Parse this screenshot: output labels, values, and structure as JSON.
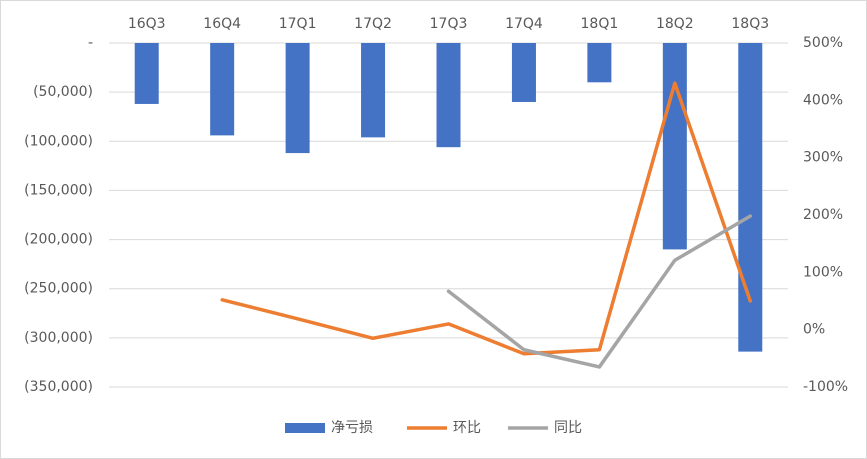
{
  "chart_data": {
    "type": "bar",
    "categories": [
      "16Q3",
      "16Q4",
      "17Q1",
      "17Q2",
      "17Q3",
      "17Q4",
      "18Q1",
      "18Q2",
      "18Q3"
    ],
    "series": [
      {
        "name": "净亏损",
        "type": "bar",
        "color": "#4472c4",
        "values": [
          -62000,
          -94000,
          -112000,
          -96000,
          -106000,
          -60000,
          -40000,
          -210000,
          -314000
        ]
      },
      {
        "name": "环比",
        "type": "line",
        "axis": "y2",
        "color": "#ed7d31",
        "values": [
          null,
          52,
          19,
          -15,
          10,
          -42,
          -35,
          430,
          50
        ]
      },
      {
        "name": "同比",
        "type": "line",
        "axis": "y2",
        "color": "#a5a5a5",
        "values": [
          null,
          null,
          null,
          null,
          67,
          -35,
          -65,
          121,
          198
        ]
      }
    ],
    "ylim": [
      -350000,
      0
    ],
    "yticks": [
      {
        "value": 0,
        "label": "-"
      },
      {
        "value": -50000,
        "label": "(50,000)"
      },
      {
        "value": -100000,
        "label": "(100,000)"
      },
      {
        "value": -150000,
        "label": "(150,000)"
      },
      {
        "value": -200000,
        "label": "(200,000)"
      },
      {
        "value": -250000,
        "label": "(250,000)"
      },
      {
        "value": -300000,
        "label": "(300,000)"
      },
      {
        "value": -350000,
        "label": "(350,000)"
      }
    ],
    "y2lim": [
      -100,
      500
    ],
    "y2ticks": [
      {
        "value": 500,
        "label": "500%"
      },
      {
        "value": 400,
        "label": "400%"
      },
      {
        "value": 300,
        "label": "300%"
      },
      {
        "value": 200,
        "label": "200%"
      },
      {
        "value": 100,
        "label": "100%"
      },
      {
        "value": 0,
        "label": "0%"
      },
      {
        "value": -100,
        "label": "-100%"
      }
    ],
    "grid": true,
    "legend": "bottom"
  }
}
